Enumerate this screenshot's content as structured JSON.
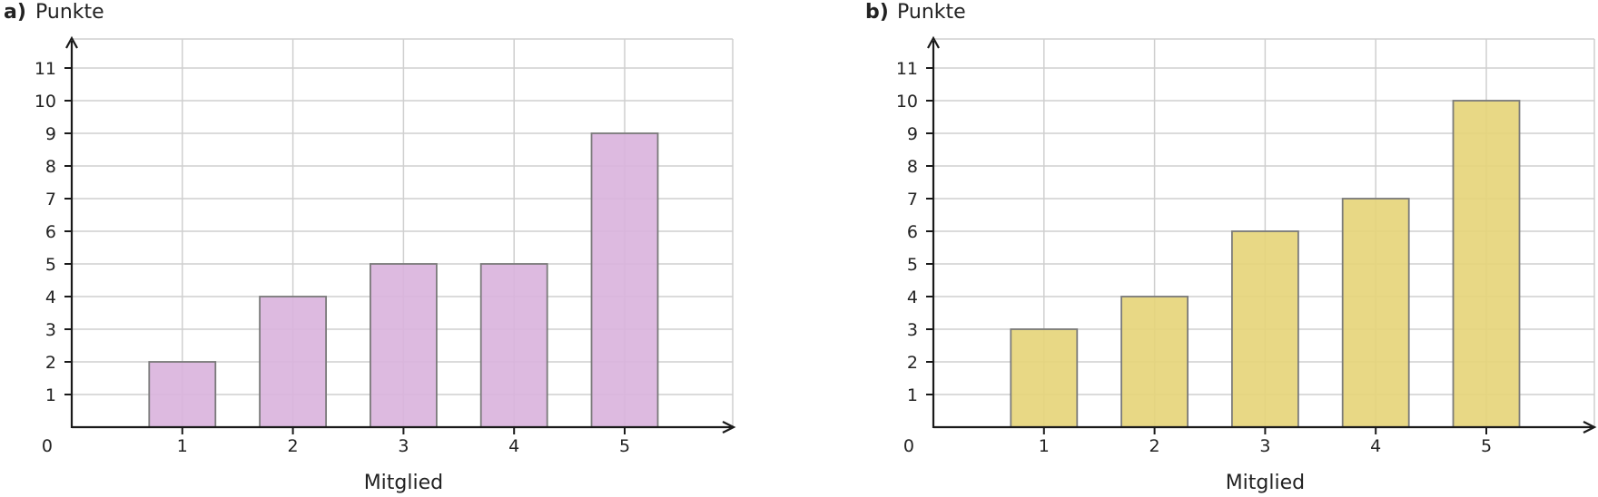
{
  "chart_data": [
    {
      "type": "bar",
      "panel_label": "a)",
      "ylabel": "Punkte",
      "xlabel": "Mitglied",
      "categories": [
        "1",
        "2",
        "3",
        "4",
        "5"
      ],
      "values": [
        2,
        4,
        5,
        5,
        9
      ],
      "ylim": [
        0,
        11
      ],
      "yticks": [
        "0",
        "1",
        "2",
        "3",
        "4",
        "5",
        "6",
        "7",
        "8",
        "9",
        "10",
        "11"
      ],
      "bar_color": "#d9b3dd",
      "grid": true
    },
    {
      "type": "bar",
      "panel_label": "b)",
      "ylabel": "Punkte",
      "xlabel": "Mitglied",
      "categories": [
        "1",
        "2",
        "3",
        "4",
        "5"
      ],
      "values": [
        3,
        4,
        6,
        7,
        10
      ],
      "ylim": [
        0,
        11
      ],
      "yticks": [
        "0",
        "1",
        "2",
        "3",
        "4",
        "5",
        "6",
        "7",
        "8",
        "9",
        "10",
        "11"
      ],
      "bar_color": "#e5d478",
      "grid": true
    }
  ]
}
